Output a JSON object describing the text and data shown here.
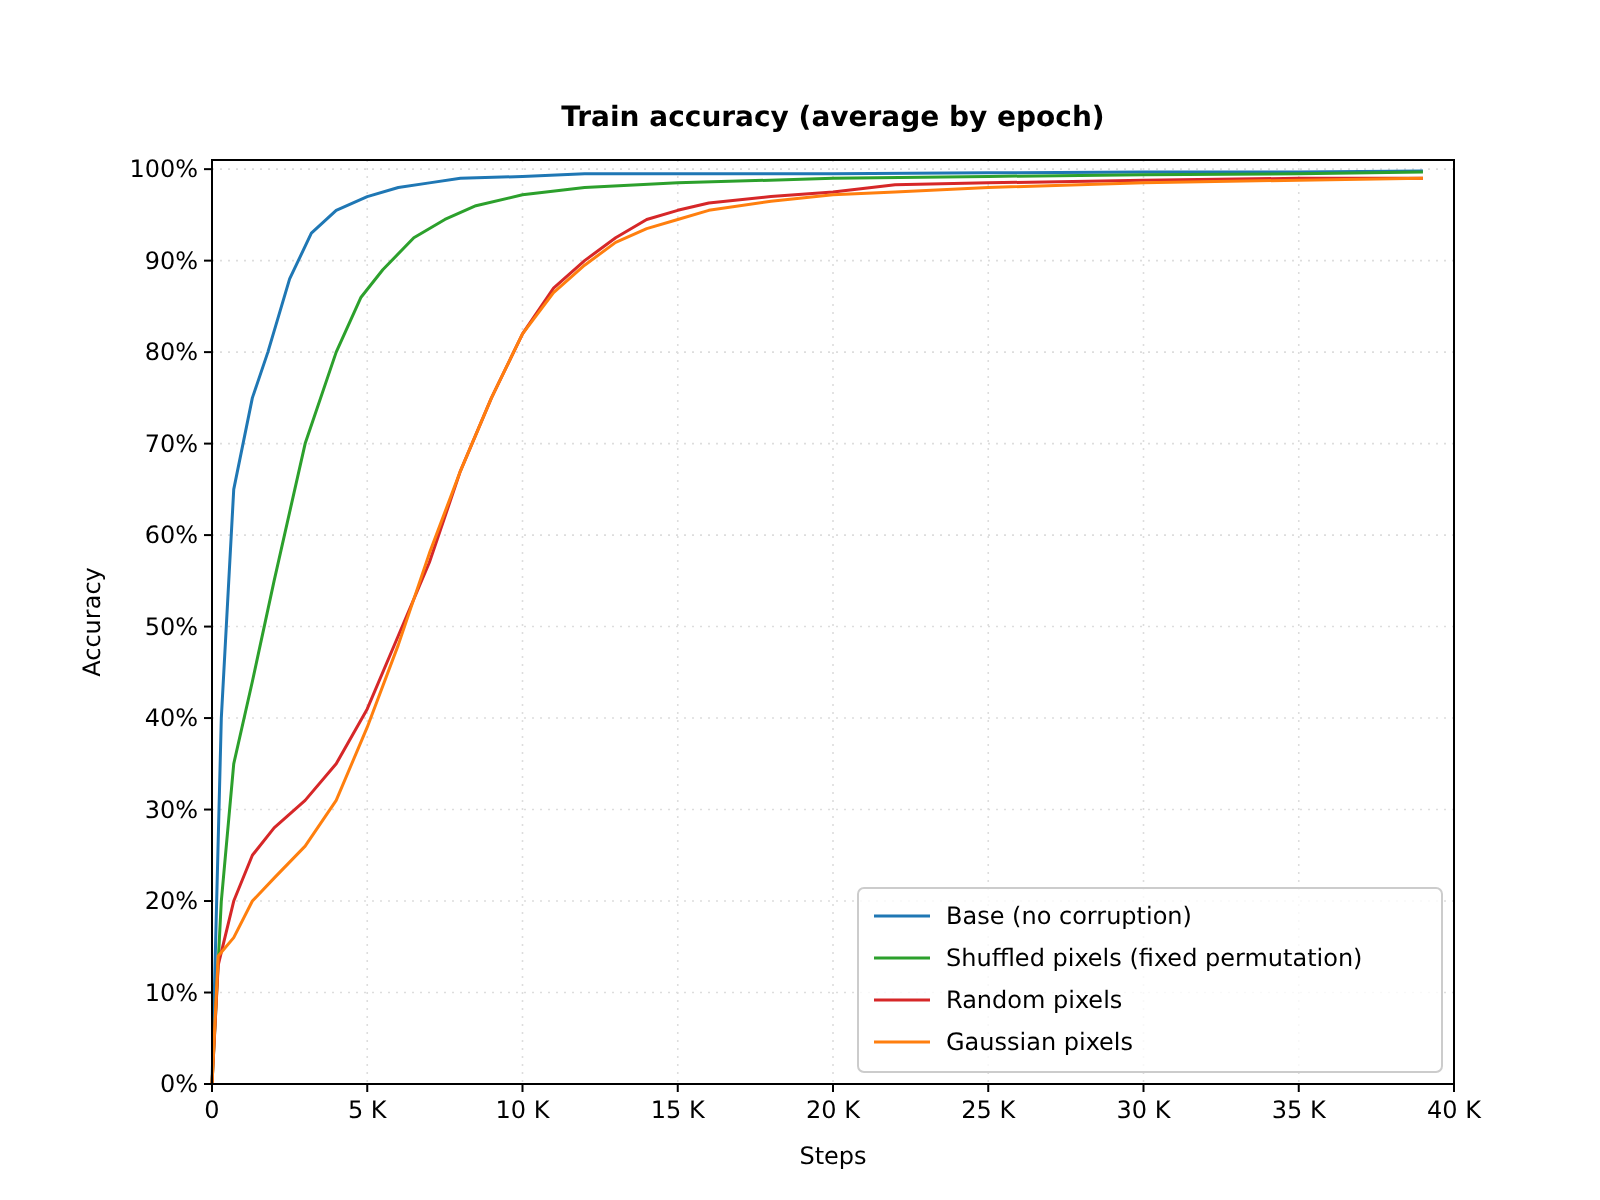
{
  "chart_data": {
    "type": "line",
    "title": "Train accuracy (average by epoch)",
    "xlabel": "Steps",
    "ylabel": "Accuracy",
    "xlim": [
      0,
      40000
    ],
    "xticks": [
      {
        "value": 0,
        "label": "0"
      },
      {
        "value": 5000,
        "label": "5 K"
      },
      {
        "value": 10000,
        "label": "10 K"
      },
      {
        "value": 15000,
        "label": "15 K"
      },
      {
        "value": 20000,
        "label": "20 K"
      },
      {
        "value": 25000,
        "label": "25 K"
      },
      {
        "value": 30000,
        "label": "30 K"
      },
      {
        "value": 35000,
        "label": "35 K"
      },
      {
        "value": 40000,
        "label": "40 K"
      }
    ],
    "ylim": [
      0,
      101
    ],
    "yticks": [
      {
        "value": 0,
        "label": "0%"
      },
      {
        "value": 10,
        "label": "10%"
      },
      {
        "value": 20,
        "label": "20%"
      },
      {
        "value": 30,
        "label": "30%"
      },
      {
        "value": 40,
        "label": "40%"
      },
      {
        "value": 50,
        "label": "50%"
      },
      {
        "value": 60,
        "label": "60%"
      },
      {
        "value": 70,
        "label": "70%"
      },
      {
        "value": 80,
        "label": "80%"
      },
      {
        "value": 90,
        "label": "90%"
      },
      {
        "value": 100,
        "label": "100%"
      }
    ],
    "grid": true,
    "legend": "bottom right",
    "line_style": "solid",
    "series": [
      {
        "name": "Base (no corruption)",
        "color": "#1f77b4",
        "x": [
          0,
          300,
          700,
          1300,
          1800,
          2500,
          3200,
          4000,
          5000,
          6000,
          7000,
          8000,
          10000,
          12000,
          15000,
          20000,
          25000,
          30000,
          35000,
          39000
        ],
        "values": [
          0,
          40,
          65,
          75,
          80,
          88,
          93,
          95.5,
          97,
          98,
          98.5,
          99,
          99.2,
          99.5,
          99.5,
          99.5,
          99.6,
          99.7,
          99.7,
          99.8
        ]
      },
      {
        "name": "Shuffled pixels (fixed permutation)",
        "color": "#2ca02c",
        "x": [
          0,
          300,
          700,
          1300,
          2000,
          3000,
          4000,
          4800,
          5500,
          6500,
          7500,
          8500,
          10000,
          12000,
          15000,
          20000,
          25000,
          30000,
          35000,
          39000
        ],
        "values": [
          0,
          20,
          35,
          44,
          55,
          70,
          80,
          86,
          89,
          92.5,
          94.5,
          96,
          97.2,
          98,
          98.5,
          99,
          99.2,
          99.4,
          99.5,
          99.7
        ]
      },
      {
        "name": "Random pixels",
        "color": "#d62728",
        "x": [
          0,
          200,
          700,
          1300,
          2000,
          3000,
          4000,
          5000,
          6000,
          7000,
          8000,
          9000,
          10000,
          11000,
          12000,
          13000,
          14000,
          15000,
          16000,
          18000,
          20000,
          22000,
          25000,
          30000,
          35000,
          39000
        ],
        "values": [
          0,
          13,
          20,
          25,
          28,
          31,
          35,
          41,
          49,
          57,
          67,
          75,
          82,
          87,
          90,
          92.5,
          94.5,
          95.5,
          96.3,
          97,
          97.5,
          98.3,
          98.5,
          98.8,
          99,
          99
        ]
      },
      {
        "name": "Gaussian pixels",
        "color": "#ff7f0e",
        "x": [
          0,
          200,
          700,
          1300,
          2000,
          3000,
          4000,
          5000,
          6000,
          7000,
          8000,
          9000,
          10000,
          11000,
          12000,
          13000,
          14000,
          15000,
          16000,
          18000,
          20000,
          22000,
          25000,
          30000,
          35000,
          39000
        ],
        "values": [
          0,
          14,
          16,
          20,
          22.5,
          26,
          31,
          39,
          48,
          58,
          67,
          75,
          82,
          86.5,
          89.5,
          92,
          93.5,
          94.5,
          95.5,
          96.5,
          97.2,
          97.5,
          98,
          98.5,
          98.8,
          99
        ]
      }
    ]
  }
}
